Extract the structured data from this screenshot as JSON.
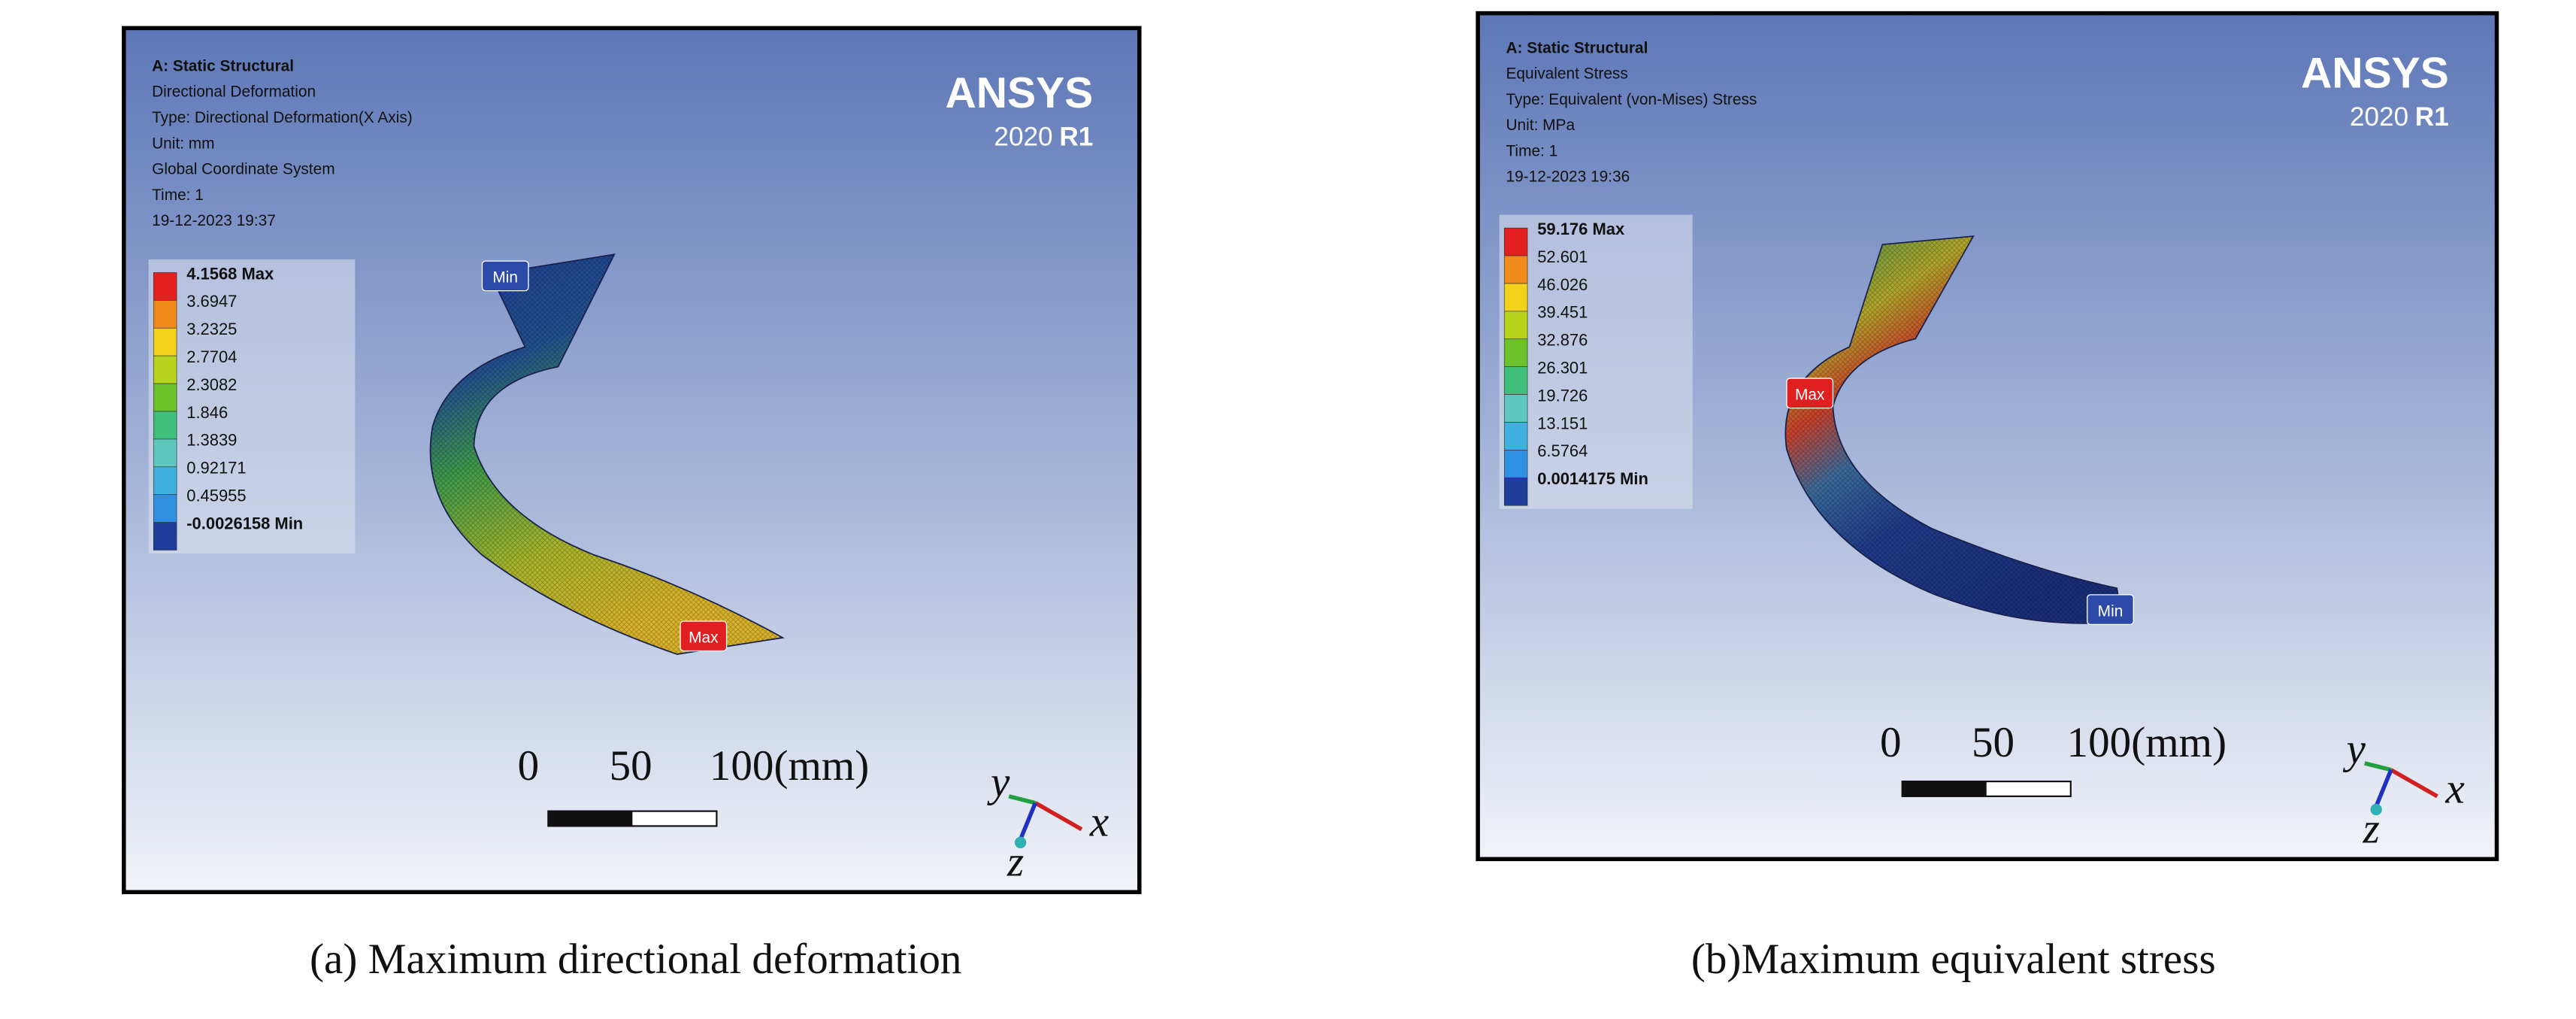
{
  "panels": [
    {
      "header": [
        "A: Static Structural",
        "Directional Deformation",
        "Type: Directional Deformation(X Axis)",
        "Unit: mm",
        "Global Coordinate System",
        "Time: 1",
        "19-12-2023 19:37"
      ],
      "logo": {
        "brand": "ANSYS",
        "version": "2020",
        "release": "R1"
      },
      "legend": [
        "4.1568 Max",
        "3.6947",
        "3.2325",
        "2.7704",
        "2.3082",
        "1.846",
        "1.3839",
        "0.92171",
        "0.45955",
        "-0.0026158 Min"
      ],
      "max_label": "Max",
      "min_label": "Min",
      "scale": [
        "0",
        "50",
        "100(mm)"
      ],
      "axes": [
        "y",
        "x",
        "z"
      ],
      "caption": "(a) Maximum directional deformation"
    },
    {
      "header": [
        "A: Static Structural",
        "Equivalent Stress",
        "Type: Equivalent (von-Mises) Stress",
        "Unit: MPa",
        "Time: 1",
        "19-12-2023 19:36"
      ],
      "logo": {
        "brand": "ANSYS",
        "version": "2020",
        "release": "R1"
      },
      "legend": [
        "59.176 Max",
        "52.601",
        "46.026",
        "39.451",
        "32.876",
        "26.301",
        "19.726",
        "13.151",
        "6.5764",
        "0.0014175 Min"
      ],
      "max_label": "Max",
      "min_label": "Min",
      "scale": [
        "0",
        "50",
        "100(mm)"
      ],
      "axes": [
        "y",
        "x",
        "z"
      ],
      "caption": "(b)Maximum equivalent stress"
    }
  ]
}
